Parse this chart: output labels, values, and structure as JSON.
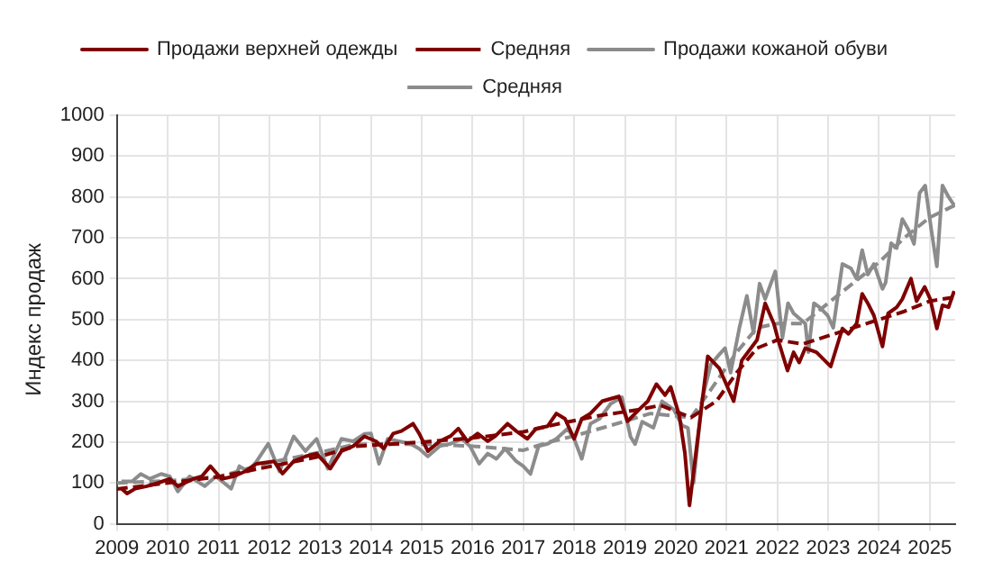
{
  "chart_data": {
    "type": "line",
    "ylabel": "Индекс продаж",
    "xlim": [
      2009,
      2025.5
    ],
    "xticks": [
      2009,
      2010,
      2011,
      2012,
      2013,
      2014,
      2015,
      2016,
      2017,
      2018,
      2019,
      2020,
      2021,
      2022,
      2023,
      2024,
      2025
    ],
    "ylim": [
      0,
      1000
    ],
    "yticks": [
      0,
      100,
      200,
      300,
      400,
      500,
      600,
      700,
      800,
      900,
      1000
    ],
    "grid": true,
    "legend": "top",
    "marker": "none",
    "series": [
      {
        "name": "Продажи верхней одежды",
        "color": "#7f0000",
        "line_style": "solid",
        "x": [
          2009.09,
          2009.2,
          2009.36,
          2009.59,
          2009.81,
          2010.04,
          2010.2,
          2010.5,
          2010.67,
          2010.84,
          2011.06,
          2011.3,
          2011.52,
          2011.75,
          2012.09,
          2012.26,
          2012.48,
          2012.71,
          2012.93,
          2013.2,
          2013.42,
          2013.65,
          2013.87,
          2014.1,
          2014.25,
          2014.44,
          2014.6,
          2014.83,
          2014.95,
          2015.12,
          2015.35,
          2015.57,
          2015.72,
          2015.9,
          2016.1,
          2016.3,
          2016.45,
          2016.69,
          2016.86,
          2017.08,
          2017.25,
          2017.48,
          2017.65,
          2017.82,
          2018.0,
          2018.15,
          2018.32,
          2018.55,
          2018.72,
          2018.88,
          2019.05,
          2019.28,
          2019.45,
          2019.62,
          2019.79,
          2019.9,
          2020.07,
          2020.18,
          2020.27,
          2020.63,
          2020.86,
          2021.14,
          2021.3,
          2021.6,
          2021.76,
          2021.93,
          2022.04,
          2022.2,
          2022.32,
          2022.43,
          2022.55,
          2022.77,
          2023.05,
          2023.28,
          2023.4,
          2023.56,
          2023.67,
          2023.78,
          2023.9,
          2024.07,
          2024.18,
          2024.35,
          2024.46,
          2024.63,
          2024.74,
          2024.9,
          2025.01,
          2025.14,
          2025.25,
          2025.37,
          2025.48
        ],
        "values": [
          86,
          74,
          86,
          92,
          100,
          110,
          92,
          110,
          116,
          141,
          110,
          116,
          128,
          147,
          153,
          123,
          153,
          165,
          172,
          135,
          178,
          190,
          214,
          202,
          184,
          221,
          227,
          245,
          221,
          178,
          202,
          215,
          233,
          202,
          221,
          202,
          215,
          245,
          227,
          208,
          233,
          239,
          270,
          257,
          208,
          257,
          270,
          300,
          306,
          312,
          251,
          280,
          300,
          342,
          315,
          335,
          265,
          173,
          45,
          410,
          380,
          300,
          400,
          450,
          540,
          490,
          440,
          375,
          420,
          395,
          430,
          420,
          385,
          478,
          465,
          490,
          563,
          540,
          510,
          434,
          515,
          530,
          550,
          600,
          545,
          580,
          550,
          478,
          535,
          530,
          570
        ]
      },
      {
        "name": "Средняя",
        "color": "#7f0000",
        "line_style": "dashed",
        "x": [
          2009,
          2010,
          2011,
          2012,
          2013,
          2013.7,
          2015,
          2016,
          2017,
          2017.7,
          2018.5,
          2019.3,
          2019.7,
          2020.3,
          2020.8,
          2021.2,
          2021.6,
          2022,
          2022.5,
          2023,
          2023.5,
          2024,
          2024.5,
          2025,
          2025.5
        ],
        "values": [
          85,
          100,
          115,
          140,
          165,
          190,
          200,
          210,
          225,
          245,
          265,
          280,
          290,
          260,
          300,
          370,
          430,
          450,
          440,
          460,
          480,
          500,
          520,
          545,
          555
        ]
      },
      {
        "name": "Продажи кожаной обуви",
        "color": "#8c8c8c",
        "line_style": "solid",
        "x": [
          2009.09,
          2009.3,
          2009.47,
          2009.65,
          2009.87,
          2010.04,
          2010.2,
          2010.43,
          2010.73,
          2010.95,
          2011.25,
          2011.41,
          2011.58,
          2011.75,
          2011.98,
          2012.2,
          2012.48,
          2012.71,
          2012.93,
          2013.15,
          2013.42,
          2013.65,
          2013.87,
          2014.0,
          2014.16,
          2014.33,
          2014.55,
          2014.78,
          2014.95,
          2015.12,
          2015.35,
          2015.57,
          2015.79,
          2015.95,
          2016.13,
          2016.3,
          2016.47,
          2016.64,
          2016.86,
          2017.0,
          2017.14,
          2017.3,
          2017.48,
          2017.65,
          2017.87,
          2018.0,
          2018.15,
          2018.32,
          2018.5,
          2018.72,
          2018.94,
          2019.11,
          2019.2,
          2019.34,
          2019.56,
          2019.73,
          2019.96,
          2020.13,
          2020.24,
          2020.35,
          2020.52,
          2020.69,
          2020.86,
          2020.97,
          2021.08,
          2021.25,
          2021.4,
          2021.53,
          2021.65,
          2021.76,
          2021.96,
          2022.1,
          2022.21,
          2022.32,
          2022.55,
          2022.61,
          2022.72,
          2022.83,
          2022.99,
          2023.1,
          2023.28,
          2023.45,
          2023.56,
          2023.67,
          2023.78,
          2023.9,
          2024.07,
          2024.13,
          2024.24,
          2024.35,
          2024.46,
          2024.58,
          2024.69,
          2024.8,
          2024.91,
          2025.03,
          2025.14,
          2025.25,
          2025.37,
          2025.48
        ],
        "values": [
          104,
          104,
          122,
          110,
          122,
          116,
          79,
          116,
          92,
          116,
          86,
          141,
          128,
          153,
          196,
          128,
          214,
          178,
          208,
          135,
          208,
          202,
          220,
          221,
          147,
          208,
          202,
          196,
          184,
          165,
          190,
          196,
          208,
          190,
          147,
          172,
          159,
          184,
          153,
          141,
          122,
          190,
          196,
          208,
          233,
          208,
          159,
          245,
          257,
          294,
          310,
          213,
          195,
          250,
          235,
          300,
          280,
          240,
          235,
          100,
          305,
          390,
          415,
          430,
          370,
          478,
          558,
          467,
          588,
          550,
          618,
          455,
          540,
          515,
          490,
          420,
          540,
          530,
          510,
          480,
          636,
          625,
          600,
          670,
          610,
          636,
          575,
          590,
          687,
          675,
          746,
          720,
          685,
          810,
          828,
          720,
          630,
          828,
          800,
          780
        ]
      },
      {
        "name": "Средняя",
        "color": "#8c8c8c",
        "line_style": "dashed",
        "x": [
          2009,
          2010,
          2011,
          2012,
          2013,
          2013.7,
          2015,
          2016,
          2017,
          2017.5,
          2018,
          2018.7,
          2019.5,
          2020.3,
          2020.7,
          2021.2,
          2021.6,
          2022,
          2022.5,
          2023,
          2023.5,
          2024,
          2024.5,
          2025,
          2025.5
        ],
        "values": [
          100,
          105,
          115,
          150,
          175,
          195,
          195,
          190,
          180,
          200,
          215,
          240,
          270,
          260,
          330,
          420,
          480,
          490,
          490,
          540,
          590,
          640,
          700,
          750,
          780
        ]
      }
    ]
  }
}
